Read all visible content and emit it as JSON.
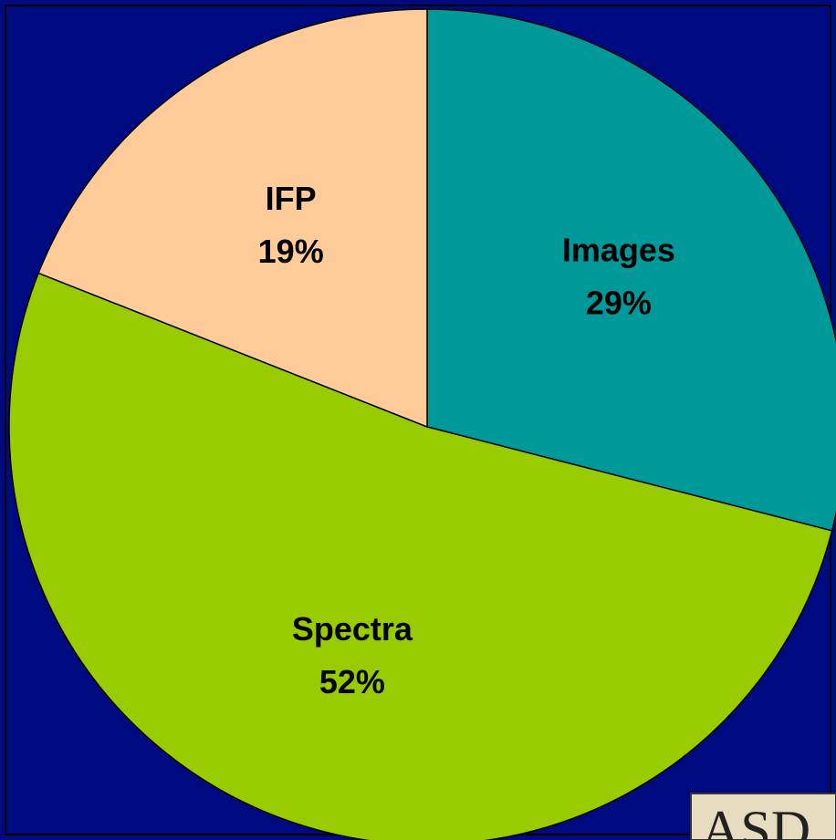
{
  "chart_data": {
    "type": "pie",
    "categories": [
      "Images",
      "Spectra",
      "IFP"
    ],
    "values": [
      29,
      52,
      19
    ],
    "value_labels": [
      "29%",
      "52%",
      "19%"
    ],
    "colors": [
      "#009999",
      "#99cc00",
      "#ffcc99"
    ],
    "start_angle": 0,
    "direction": "clockwise"
  },
  "corner_image_text": "ASD"
}
